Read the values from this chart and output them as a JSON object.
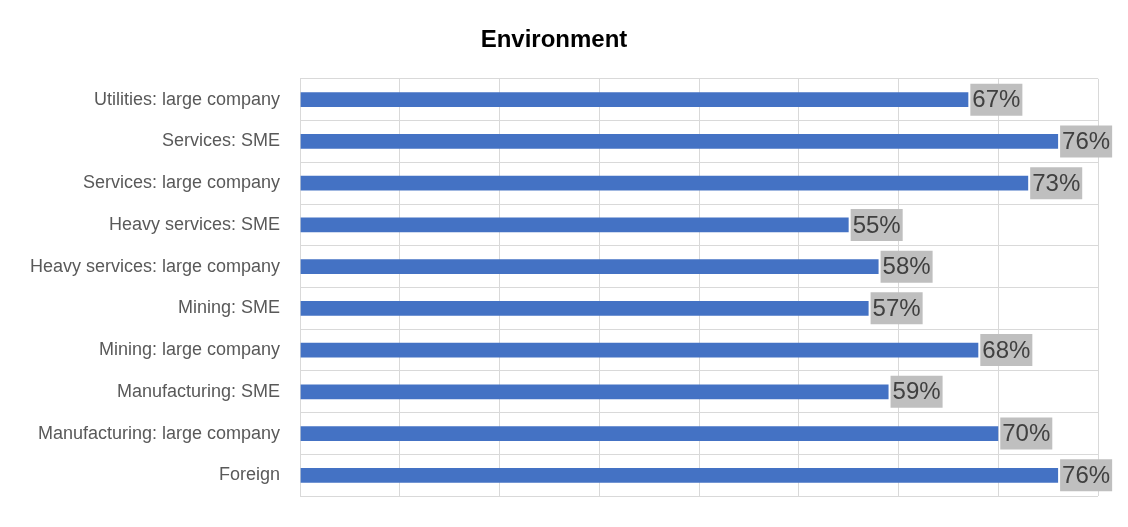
{
  "chart_data": {
    "type": "bar",
    "orientation": "horizontal",
    "title": "Environment",
    "categories": [
      "Utilities: large company",
      "Services: SME",
      "Services: large company",
      "Heavy services: SME",
      "Heavy services: large company",
      "Mining: SME",
      "Mining: large company",
      "Manufacturing: SME",
      "Manufacturing: large company",
      "Foreign"
    ],
    "values": [
      67,
      76,
      73,
      55,
      58,
      57,
      68,
      59,
      70,
      76
    ],
    "value_labels": [
      "67%",
      "76%",
      "73%",
      "55%",
      "58%",
      "57%",
      "68%",
      "59%",
      "70%",
      "76%"
    ],
    "color": "#4472c4",
    "xlim": [
      0,
      80
    ],
    "xticks": [
      {
        "value": 0,
        "label": null
      },
      {
        "value": 10,
        "label": null
      },
      {
        "value": 20,
        "label": null
      },
      {
        "value": 30,
        "label": null
      },
      {
        "value": 40,
        "label": null
      },
      {
        "value": 50,
        "label": null
      },
      {
        "value": 60,
        "label": null
      },
      {
        "value": 70,
        "label": null
      },
      {
        "value": 80,
        "label": null
      }
    ],
    "tick_labels": "y",
    "grid": true,
    "legend": false
  }
}
